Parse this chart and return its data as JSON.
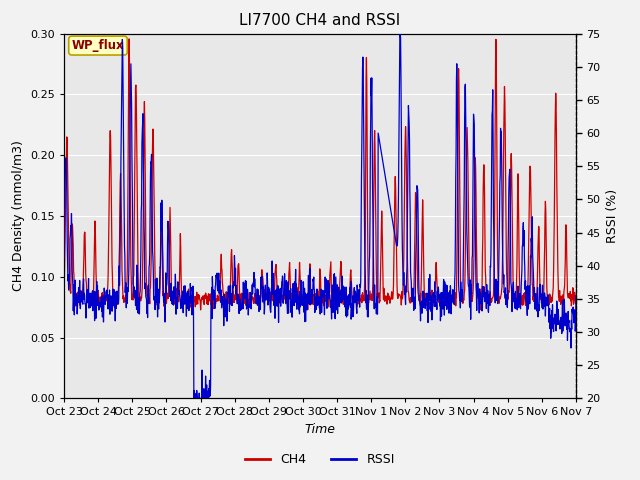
{
  "title": "LI7700 CH4 and RSSI",
  "xlabel": "Time",
  "ylabel_left": "CH4 Density (mmol/m3)",
  "ylabel_right": "RSSI (%)",
  "ylim_left": [
    0.0,
    0.3
  ],
  "ylim_right": [
    20,
    75
  ],
  "yticks_left": [
    0.0,
    0.05,
    0.1,
    0.15,
    0.2,
    0.25,
    0.3
  ],
  "yticks_right": [
    20,
    25,
    30,
    35,
    40,
    45,
    50,
    55,
    60,
    65,
    70,
    75
  ],
  "x_tick_labels": [
    "Oct 23",
    "Oct 24",
    "Oct 25",
    "Oct 26",
    "Oct 27",
    "Oct 28",
    "Oct 29",
    "Oct 30",
    "Oct 31",
    "Nov 1",
    "Nov 2",
    "Nov 3",
    "Nov 4",
    "Nov 5",
    "Nov 6",
    "Nov 7"
  ],
  "ch4_color": "#cc0000",
  "rssi_color": "#0000cc",
  "plot_bg": "#e8e8e8",
  "fig_bg": "#f2f2f2",
  "title_fontsize": 11,
  "axis_fontsize": 9,
  "tick_fontsize": 8,
  "legend_label_ch4": "CH4",
  "legend_label_rssi": "RSSI",
  "site_label": "WP_flux",
  "grid_color": "#ffffff"
}
